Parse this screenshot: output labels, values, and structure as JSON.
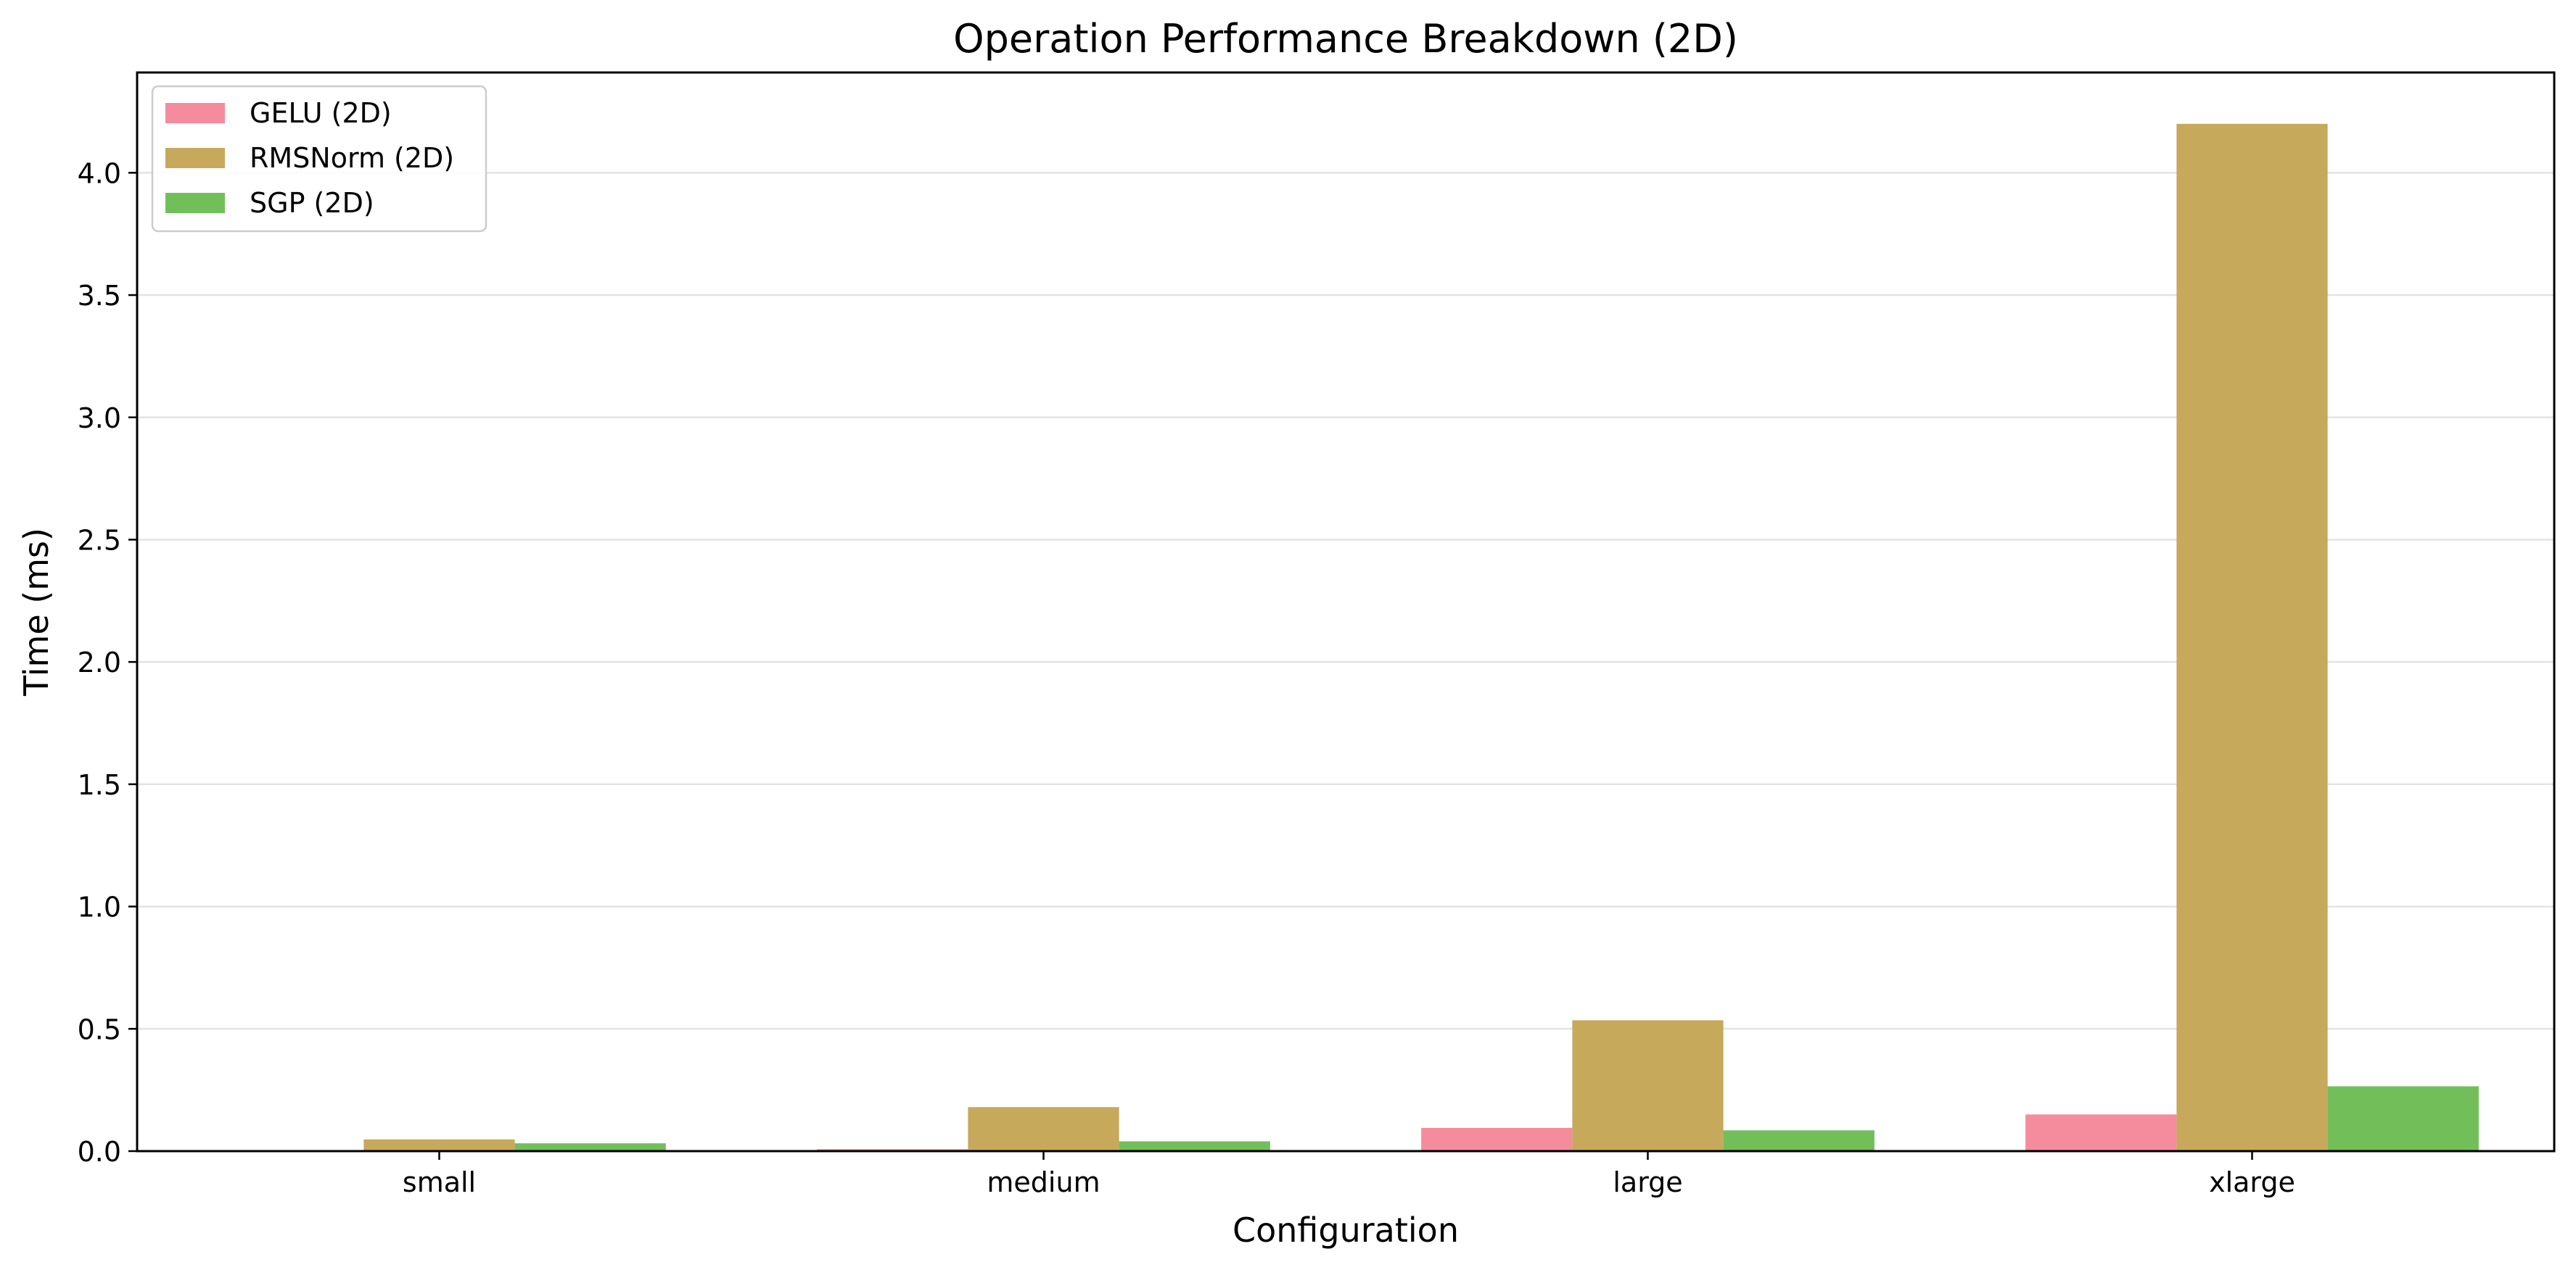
{
  "chart_data": {
    "type": "bar",
    "title": "Operation Performance Breakdown (2D)",
    "xlabel": "Configuration",
    "ylabel": "Time (ms)",
    "categories": [
      "small",
      "medium",
      "large",
      "xlarge"
    ],
    "series": [
      {
        "name": "GELU (2D)",
        "color": "#f48c9d",
        "values": [
          0.004,
          0.008,
          0.095,
          0.15
        ]
      },
      {
        "name": "RMSNorm (2D)",
        "color": "#c7a95b",
        "values": [
          0.048,
          0.18,
          0.535,
          4.2
        ]
      },
      {
        "name": "SGP (2D)",
        "color": "#72bf5a",
        "values": [
          0.032,
          0.04,
          0.085,
          0.265
        ]
      }
    ],
    "yticks": [
      "0.0",
      "0.5",
      "1.0",
      "1.5",
      "2.0",
      "2.5",
      "3.0",
      "3.5",
      "4.0"
    ],
    "ylim": [
      0,
      4.41
    ],
    "grid": "y",
    "legend": "top-left"
  }
}
